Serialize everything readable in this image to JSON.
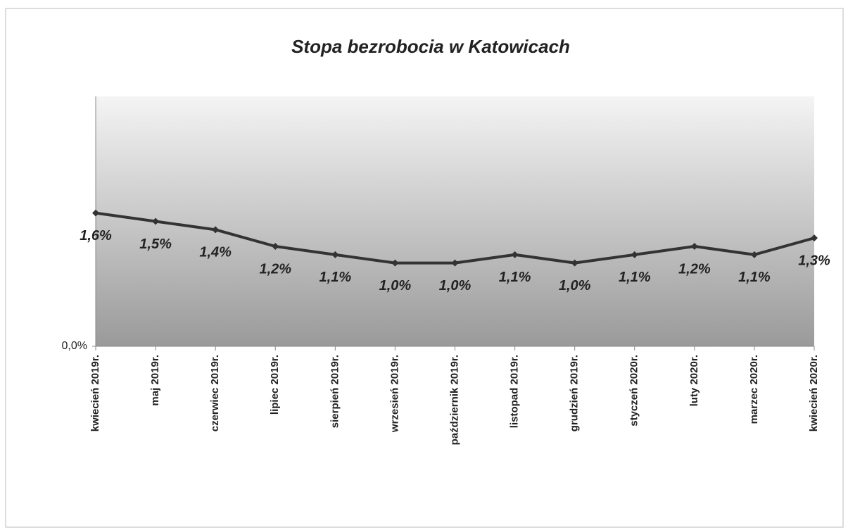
{
  "chart_data": {
    "type": "line",
    "title": "Stopa bezrobocia w Katowicach",
    "categories": [
      "kwiecień 2019r.",
      "maj 2019r.",
      "czerwiec 2019r.",
      "lipiec 2019r.",
      "sierpień 2019r.",
      "wrzesień 2019r.",
      "październik 2019r.",
      "listopad 2019r.",
      "grudzień 2019r.",
      "styczeń 2020r.",
      "luty 2020r.",
      "marzec 2020r.",
      "kwiecień 2020r."
    ],
    "values": [
      1.6,
      1.5,
      1.4,
      1.2,
      1.1,
      1.0,
      1.0,
      1.1,
      1.0,
      1.1,
      1.2,
      1.1,
      1.3
    ],
    "value_labels": [
      "1,6%",
      "1,5%",
      "1,4%",
      "1,2%",
      "1,1%",
      "1,0%",
      "1,0%",
      "1,1%",
      "1,0%",
      "1,1%",
      "1,2%",
      "1,1%",
      "1,3%"
    ],
    "color": "#333333",
    "ylim": [
      0,
      3
    ],
    "yticks": [
      {
        "value": 0,
        "label": "0,0%"
      }
    ]
  }
}
